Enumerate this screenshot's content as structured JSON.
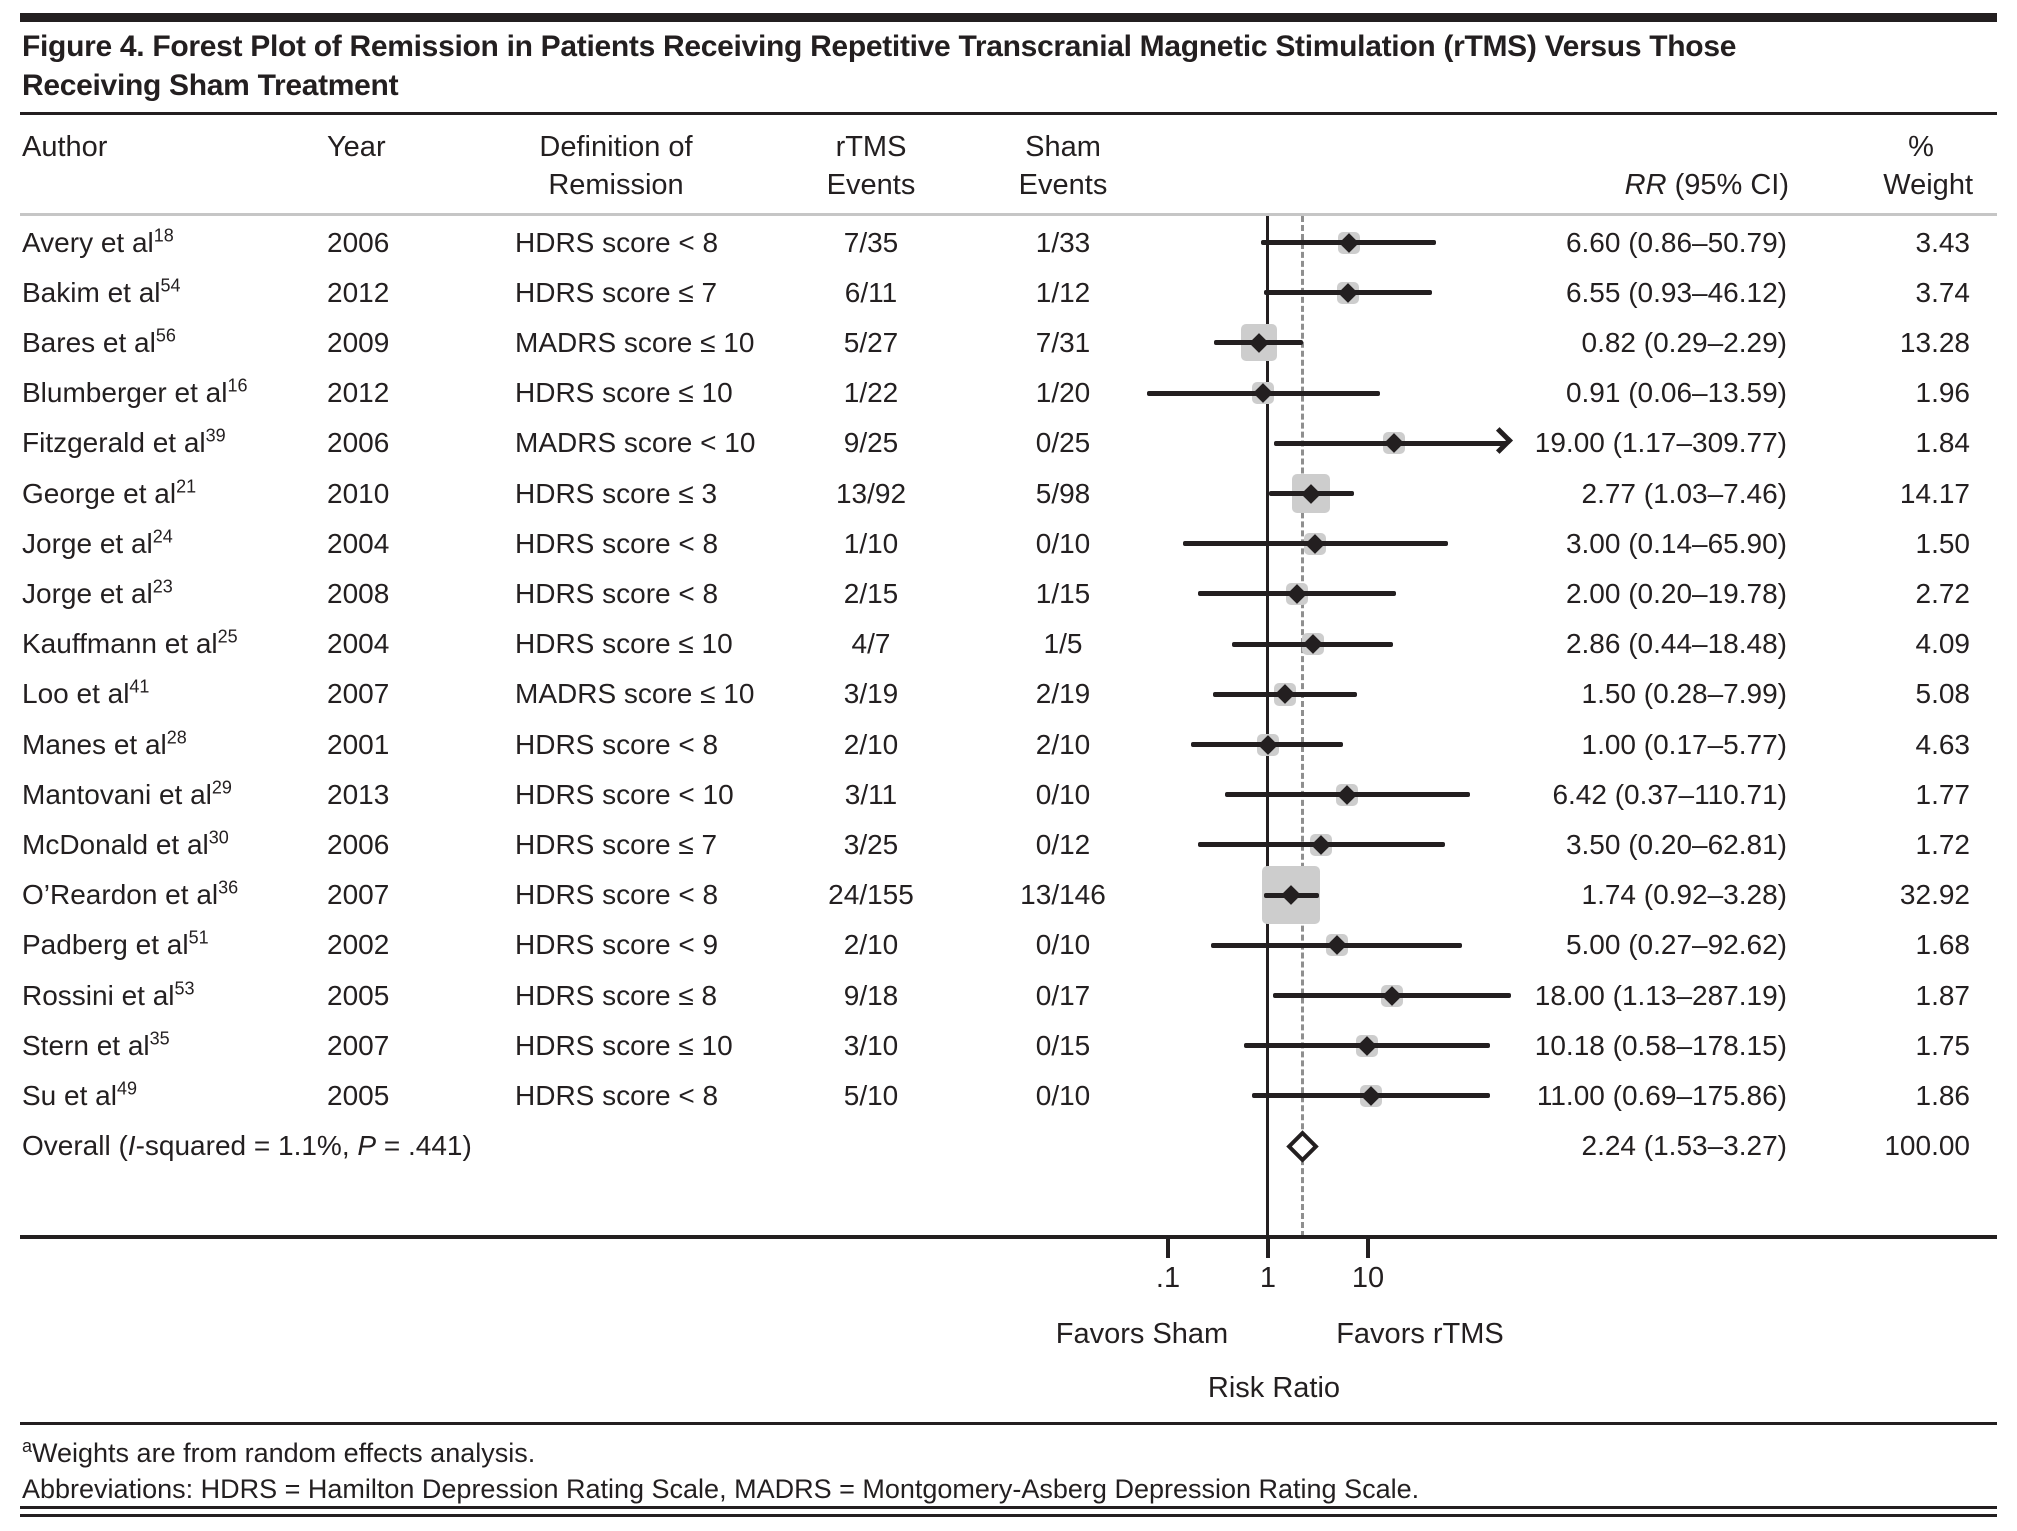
{
  "figure": {
    "title_line1": "Figure 4. Forest Plot of Remission in Patients Receiving Repetitive Transcranial Magnetic Stimulation (rTMS) Versus Those",
    "title_line2": "Receiving Sham Treatment"
  },
  "columns": {
    "author": "Author",
    "year": "Year",
    "definition_l1": "Definition of",
    "definition_l2": "Remission",
    "rtms_l1": "rTMS",
    "rtms_l2": "Events",
    "sham_l1": "Sham",
    "sham_l2": "Events",
    "rr_italic": "RR",
    "rr_rest": " (95% CI)",
    "pct": "%",
    "weight": "Weight"
  },
  "axis": {
    "ticks": [
      ".1",
      "1",
      "10"
    ],
    "favors_sham": "Favors Sham",
    "favors_rtms": "Favors rTMS",
    "xlabel": "Risk Ratio"
  },
  "footnotes": {
    "marker": "a",
    "line1": "Weights are from random effects analysis.",
    "line2": "Abbreviations: HDRS = Hamilton Depression Rating Scale, MADRS = Montgomery-Asberg Depression Rating Scale."
  },
  "chart_data": {
    "type": "scatter",
    "subtype": "forest-plot",
    "x_scale": "log10",
    "x_range": [
      0.05,
      320
    ],
    "x_ticks": [
      0.1,
      1,
      10
    ],
    "x_tick_labels": [
      ".1",
      "1",
      "10"
    ],
    "xlabel": "Risk Ratio",
    "reference_line": 1.0,
    "overall_dashed_line": 2.24,
    "grid": false,
    "colors": {
      "marker": "#231f20",
      "weight_square": "#cdcdcd",
      "dashed_line": "#8f8f8f"
    },
    "annotations": {
      "left_of_1": "Favors Sham",
      "right_of_1": "Favors rTMS"
    },
    "studies": [
      {
        "author": "Avery et al",
        "ref": "18",
        "year": "2006",
        "definition": "HDRS score < 8",
        "rtms_events": "7/35",
        "sham_events": "1/33",
        "rr": 6.6,
        "ci_low": 0.86,
        "ci_high": 50.79,
        "rr_label": "6.60 (0.86–50.79)",
        "weight": 3.43,
        "weight_label": "3.43",
        "arrow": false
      },
      {
        "author": "Bakim et al",
        "ref": "54",
        "year": "2012",
        "definition": "HDRS score ≤ 7",
        "rtms_events": "6/11",
        "sham_events": "1/12",
        "rr": 6.55,
        "ci_low": 0.93,
        "ci_high": 46.12,
        "rr_label": "6.55 (0.93–46.12)",
        "weight": 3.74,
        "weight_label": "3.74",
        "arrow": false
      },
      {
        "author": "Bares et al",
        "ref": "56",
        "year": "2009",
        "definition": "MADRS score ≤ 10",
        "rtms_events": "5/27",
        "sham_events": "7/31",
        "rr": 0.82,
        "ci_low": 0.29,
        "ci_high": 2.29,
        "rr_label": "0.82 (0.29–2.29)",
        "weight": 13.28,
        "weight_label": "13.28",
        "arrow": false
      },
      {
        "author": "Blumberger et al",
        "ref": "16",
        "year": "2012",
        "definition": "HDRS score ≤ 10",
        "rtms_events": "1/22",
        "sham_events": "1/20",
        "rr": 0.91,
        "ci_low": 0.06,
        "ci_high": 13.59,
        "rr_label": "0.91 (0.06–13.59)",
        "weight": 1.96,
        "weight_label": "1.96",
        "arrow": false
      },
      {
        "author": "Fitzgerald et al",
        "ref": "39",
        "year": "2006",
        "definition": "MADRS score < 10",
        "rtms_events": "9/25",
        "sham_events": "0/25",
        "rr": 19.0,
        "ci_low": 1.17,
        "ci_high": 309.77,
        "rr_label": "19.00 (1.17–309.77)",
        "weight": 1.84,
        "weight_label": "1.84",
        "arrow": true
      },
      {
        "author": "George et al",
        "ref": "21",
        "year": "2010",
        "definition": "HDRS score ≤ 3",
        "rtms_events": "13/92",
        "sham_events": "5/98",
        "rr": 2.77,
        "ci_low": 1.03,
        "ci_high": 7.46,
        "rr_label": "2.77 (1.03–7.46)",
        "weight": 14.17,
        "weight_label": "14.17",
        "arrow": false
      },
      {
        "author": "Jorge et al",
        "ref": "24",
        "year": "2004",
        "definition": "HDRS score < 8",
        "rtms_events": "1/10",
        "sham_events": "0/10",
        "rr": 3.0,
        "ci_low": 0.14,
        "ci_high": 65.9,
        "rr_label": "3.00 (0.14–65.90)",
        "weight": 1.5,
        "weight_label": "1.50",
        "arrow": false
      },
      {
        "author": "Jorge et al",
        "ref": "23",
        "year": "2008",
        "definition": "HDRS score < 8",
        "rtms_events": "2/15",
        "sham_events": "1/15",
        "rr": 2.0,
        "ci_low": 0.2,
        "ci_high": 19.78,
        "rr_label": "2.00 (0.20–19.78)",
        "weight": 2.72,
        "weight_label": "2.72",
        "arrow": false
      },
      {
        "author": "Kauffmann et al",
        "ref": "25",
        "year": "2004",
        "definition": "HDRS score ≤ 10",
        "rtms_events": "4/7",
        "sham_events": "1/5",
        "rr": 2.86,
        "ci_low": 0.44,
        "ci_high": 18.48,
        "rr_label": "2.86 (0.44–18.48)",
        "weight": 4.09,
        "weight_label": "4.09",
        "arrow": false
      },
      {
        "author": "Loo et al",
        "ref": "41",
        "year": "2007",
        "definition": "MADRS score ≤ 10",
        "rtms_events": "3/19",
        "sham_events": "2/19",
        "rr": 1.5,
        "ci_low": 0.28,
        "ci_high": 7.99,
        "rr_label": "1.50 (0.28–7.99)",
        "weight": 5.08,
        "weight_label": "5.08",
        "arrow": false
      },
      {
        "author": "Manes et al",
        "ref": "28",
        "year": "2001",
        "definition": "HDRS score < 8",
        "rtms_events": "2/10",
        "sham_events": "2/10",
        "rr": 1.0,
        "ci_low": 0.17,
        "ci_high": 5.77,
        "rr_label": "1.00 (0.17–5.77)",
        "weight": 4.63,
        "weight_label": "4.63",
        "arrow": false
      },
      {
        "author": "Mantovani et al",
        "ref": "29",
        "year": "2013",
        "definition": "HDRS score < 10",
        "rtms_events": "3/11",
        "sham_events": "0/10",
        "rr": 6.42,
        "ci_low": 0.37,
        "ci_high": 110.71,
        "rr_label": "6.42 (0.37–110.71)",
        "weight": 1.77,
        "weight_label": "1.77",
        "arrow": false
      },
      {
        "author": "McDonald et al",
        "ref": "30",
        "year": "2006",
        "definition": "HDRS score ≤ 7",
        "rtms_events": "3/25",
        "sham_events": "0/12",
        "rr": 3.5,
        "ci_low": 0.2,
        "ci_high": 62.81,
        "rr_label": "3.50 (0.20–62.81)",
        "weight": 1.72,
        "weight_label": "1.72",
        "arrow": false
      },
      {
        "author": "O’Reardon et al",
        "ref": "36",
        "year": "2007",
        "definition": "HDRS score < 8",
        "rtms_events": "24/155",
        "sham_events": "13/146",
        "rr": 1.74,
        "ci_low": 0.92,
        "ci_high": 3.28,
        "rr_label": "1.74 (0.92–3.28)",
        "weight": 32.92,
        "weight_label": "32.92",
        "arrow": false
      },
      {
        "author": "Padberg et al",
        "ref": "51",
        "year": "2002",
        "definition": "HDRS score < 9",
        "rtms_events": "2/10",
        "sham_events": "0/10",
        "rr": 5.0,
        "ci_low": 0.27,
        "ci_high": 92.62,
        "rr_label": "5.00 (0.27–92.62)",
        "weight": 1.68,
        "weight_label": "1.68",
        "arrow": false
      },
      {
        "author": "Rossini et al",
        "ref": "53",
        "year": "2005",
        "definition": "HDRS score ≤ 8",
        "rtms_events": "9/18",
        "sham_events": "0/17",
        "rr": 18.0,
        "ci_low": 1.13,
        "ci_high": 287.19,
        "rr_label": "18.00 (1.13–287.19)",
        "weight": 1.87,
        "weight_label": "1.87",
        "arrow": false
      },
      {
        "author": "Stern et al",
        "ref": "35",
        "year": "2007",
        "definition": "HDRS score ≤ 10",
        "rtms_events": "3/10",
        "sham_events": "0/15",
        "rr": 10.18,
        "ci_low": 0.58,
        "ci_high": 178.15,
        "rr_label": "10.18 (0.58–178.15)",
        "weight": 1.75,
        "weight_label": "1.75",
        "arrow": false
      },
      {
        "author": "Su et al",
        "ref": "49",
        "year": "2005",
        "definition": "HDRS score < 8",
        "rtms_events": "5/10",
        "sham_events": "0/10",
        "rr": 11.0,
        "ci_low": 0.69,
        "ci_high": 175.86,
        "rr_label": "11.00 (0.69–175.86)",
        "weight": 1.86,
        "weight_label": "1.86",
        "arrow": false
      }
    ],
    "overall": {
      "label_parts": [
        "Overall (",
        "I",
        "-squared = 1.1%, ",
        "P",
        " = .441)"
      ],
      "rr": 2.24,
      "ci_low": 1.53,
      "ci_high": 3.27,
      "rr_label": "2.24 (1.53–3.27)",
      "weight_label": "100.00"
    }
  }
}
